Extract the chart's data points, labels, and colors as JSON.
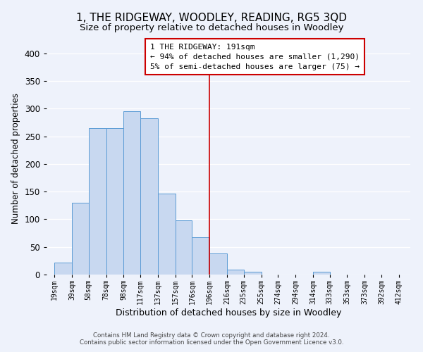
{
  "title": "1, THE RIDGEWAY, WOODLEY, READING, RG5 3QD",
  "subtitle": "Size of property relative to detached houses in Woodley",
  "xlabel": "Distribution of detached houses by size in Woodley",
  "ylabel": "Number of detached properties",
  "bar_left_edges": [
    19,
    39,
    58,
    78,
    98,
    117,
    137,
    157,
    176,
    196,
    216,
    235,
    255,
    274,
    294,
    314,
    333,
    353,
    373,
    392
  ],
  "bar_heights": [
    22,
    130,
    265,
    265,
    295,
    283,
    147,
    98,
    68,
    38,
    9,
    5,
    0,
    0,
    0,
    5,
    0,
    0,
    0,
    0
  ],
  "bar_widths": [
    20,
    19,
    20,
    20,
    19,
    20,
    20,
    19,
    20,
    20,
    19,
    20,
    19,
    20,
    20,
    19,
    20,
    20,
    19,
    20
  ],
  "tick_labels": [
    "19sqm",
    "39sqm",
    "58sqm",
    "78sqm",
    "98sqm",
    "117sqm",
    "137sqm",
    "157sqm",
    "176sqm",
    "196sqm",
    "216sqm",
    "235sqm",
    "255sqm",
    "274sqm",
    "294sqm",
    "314sqm",
    "333sqm",
    "353sqm",
    "373sqm",
    "392sqm",
    "412sqm"
  ],
  "tick_positions": [
    19,
    39,
    58,
    78,
    98,
    117,
    137,
    157,
    176,
    196,
    216,
    235,
    255,
    274,
    294,
    314,
    333,
    353,
    373,
    392,
    412
  ],
  "bar_color": "#c8d8f0",
  "bar_edge_color": "#5b9bd5",
  "vline_x": 196,
  "vline_color": "#cc0000",
  "annotation_line1": "1 THE RIDGEWAY: 191sqm",
  "annotation_line2": "← 94% of detached houses are smaller (1,290)",
  "annotation_line3": "5% of semi-detached houses are larger (75) →",
  "ylim": [
    0,
    420
  ],
  "xlim": [
    10,
    425
  ],
  "footnote1": "Contains HM Land Registry data © Crown copyright and database right 2024.",
  "footnote2": "Contains public sector information licensed under the Open Government Licence v3.0.",
  "bg_color": "#eef2fb",
  "title_fontsize": 11,
  "subtitle_fontsize": 9.5,
  "xlabel_fontsize": 9,
  "ylabel_fontsize": 8.5,
  "tick_fontsize": 7,
  "annot_fontsize": 8
}
